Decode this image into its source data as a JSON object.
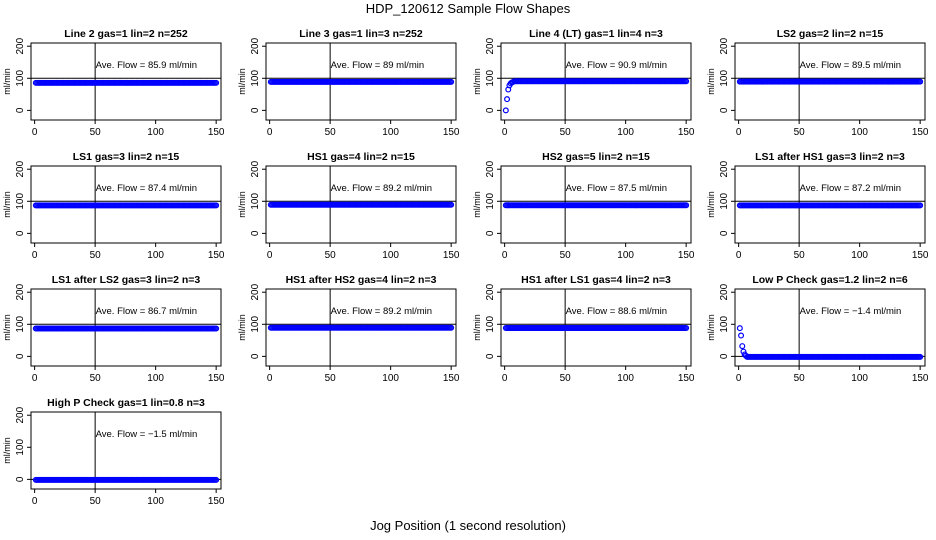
{
  "figure": {
    "title": "HDP_120612  Sample Flow Shapes",
    "xlabel": "Jog Position (1 second resolution)"
  },
  "style": {
    "point_color": "#0000ff",
    "box_color": "#000000"
  },
  "chart_data": [
    {
      "type": "scatter",
      "title": "Line 2 gas=1 lin=2 n=252",
      "ylabel": "ml/min",
      "annotation": "Ave. Flow = 85.9  ml/min",
      "xlim": [
        -3,
        154
      ],
      "ylim": [
        -30,
        210
      ],
      "xticks": [
        0,
        50,
        100,
        150
      ],
      "yticks": [
        0,
        100,
        200
      ],
      "vline": 50,
      "hline": 100,
      "x_start": 1,
      "x_end": 150,
      "early": [],
      "plateau": 85.9
    },
    {
      "type": "scatter",
      "title": "Line 3 gas=1 lin=3 n=252",
      "ylabel": "ml/min",
      "annotation": "Ave. Flow =  89  ml/min",
      "xlim": [
        -3,
        154
      ],
      "ylim": [
        -30,
        210
      ],
      "xticks": [
        0,
        50,
        100,
        150
      ],
      "yticks": [
        0,
        100,
        200
      ],
      "vline": 50,
      "hline": 100,
      "x_start": 1,
      "x_end": 150,
      "early": [],
      "plateau": 89
    },
    {
      "type": "scatter",
      "title": "Line 4 (LT) gas=1 lin=4 n=3",
      "ylabel": "ml/min",
      "annotation": "Ave. Flow = 90.9  ml/min",
      "xlim": [
        -3,
        154
      ],
      "ylim": [
        -30,
        210
      ],
      "xticks": [
        0,
        50,
        100,
        150
      ],
      "yticks": [
        0,
        100,
        200
      ],
      "vline": 50,
      "hline": 100,
      "x_start": 1,
      "x_end": 150,
      "early": [
        [
          1,
          0
        ],
        [
          2,
          35
        ],
        [
          3,
          65
        ],
        [
          4,
          78
        ],
        [
          5,
          84
        ],
        [
          6,
          87
        ],
        [
          7,
          89
        ]
      ],
      "plateau": 90.9
    },
    {
      "type": "scatter",
      "title": "LS2 gas=2 lin=2 n=15",
      "ylabel": "ml/min",
      "annotation": "Ave. Flow = 89.5  ml/min",
      "xlim": [
        -3,
        154
      ],
      "ylim": [
        -30,
        210
      ],
      "xticks": [
        0,
        50,
        100,
        150
      ],
      "yticks": [
        0,
        100,
        200
      ],
      "vline": 50,
      "hline": 100,
      "x_start": 1,
      "x_end": 150,
      "early": [],
      "plateau": 89.5
    },
    {
      "type": "scatter",
      "title": "LS1 gas=3 lin=2 n=15",
      "ylabel": "ml/min",
      "annotation": "Ave. Flow = 87.4  ml/min",
      "xlim": [
        -3,
        154
      ],
      "ylim": [
        -30,
        210
      ],
      "xticks": [
        0,
        50,
        100,
        150
      ],
      "yticks": [
        0,
        100,
        200
      ],
      "vline": 50,
      "hline": 100,
      "x_start": 1,
      "x_end": 150,
      "early": [],
      "plateau": 87.4
    },
    {
      "type": "scatter",
      "title": "HS1 gas=4 lin=2 n=15",
      "ylabel": "ml/min",
      "annotation": "Ave. Flow = 89.2  ml/min",
      "xlim": [
        -3,
        154
      ],
      "ylim": [
        -30,
        210
      ],
      "xticks": [
        0,
        50,
        100,
        150
      ],
      "yticks": [
        0,
        100,
        200
      ],
      "vline": 50,
      "hline": 100,
      "x_start": 1,
      "x_end": 150,
      "early": [],
      "plateau": 89.2
    },
    {
      "type": "scatter",
      "title": "HS2 gas=5 lin=2 n=15",
      "ylabel": "ml/min",
      "annotation": "Ave. Flow = 87.5  ml/min",
      "xlim": [
        -3,
        154
      ],
      "ylim": [
        -30,
        210
      ],
      "xticks": [
        0,
        50,
        100,
        150
      ],
      "yticks": [
        0,
        100,
        200
      ],
      "vline": 50,
      "hline": 100,
      "x_start": 1,
      "x_end": 150,
      "early": [],
      "plateau": 87.5
    },
    {
      "type": "scatter",
      "title": "LS1 after HS1 gas=3 lin=2 n=3",
      "ylabel": "ml/min",
      "annotation": "Ave. Flow = 87.2  ml/min",
      "xlim": [
        -3,
        154
      ],
      "ylim": [
        -30,
        210
      ],
      "xticks": [
        0,
        50,
        100,
        150
      ],
      "yticks": [
        0,
        100,
        200
      ],
      "vline": 50,
      "hline": 100,
      "x_start": 1,
      "x_end": 150,
      "early": [],
      "plateau": 87.2
    },
    {
      "type": "scatter",
      "title": "LS1 after LS2 gas=3 lin=2 n=3",
      "ylabel": "ml/min",
      "annotation": "Ave. Flow = 86.7  ml/min",
      "xlim": [
        -3,
        154
      ],
      "ylim": [
        -30,
        210
      ],
      "xticks": [
        0,
        50,
        100,
        150
      ],
      "yticks": [
        0,
        100,
        200
      ],
      "vline": 50,
      "hline": 100,
      "x_start": 1,
      "x_end": 150,
      "early": [],
      "plateau": 86.7
    },
    {
      "type": "scatter",
      "title": "HS1 after HS2 gas=4 lin=2 n=3",
      "ylabel": "ml/min",
      "annotation": "Ave. Flow = 89.2  ml/min",
      "xlim": [
        -3,
        154
      ],
      "ylim": [
        -30,
        210
      ],
      "xticks": [
        0,
        50,
        100,
        150
      ],
      "yticks": [
        0,
        100,
        200
      ],
      "vline": 50,
      "hline": 100,
      "x_start": 1,
      "x_end": 150,
      "early": [],
      "plateau": 89.2
    },
    {
      "type": "scatter",
      "title": "HS1 after LS1 gas=4 lin=2 n=3",
      "ylabel": "ml/min",
      "annotation": "Ave. Flow = 88.6  ml/min",
      "xlim": [
        -3,
        154
      ],
      "ylim": [
        -30,
        210
      ],
      "xticks": [
        0,
        50,
        100,
        150
      ],
      "yticks": [
        0,
        100,
        200
      ],
      "vline": 50,
      "hline": 100,
      "x_start": 1,
      "x_end": 150,
      "early": [],
      "plateau": 88.6
    },
    {
      "type": "scatter",
      "title": "Low P Check gas=1.2 lin=2 n=6",
      "ylabel": "ml/min",
      "annotation": "Ave. Flow = −1.4  ml/min",
      "xlim": [
        -3,
        154
      ],
      "ylim": [
        -30,
        210
      ],
      "xticks": [
        0,
        50,
        100,
        150
      ],
      "yticks": [
        0,
        100,
        200
      ],
      "vline": 50,
      "hline": 0,
      "x_start": 1,
      "x_end": 150,
      "early": [
        [
          1,
          88
        ],
        [
          2,
          65
        ],
        [
          3,
          32
        ],
        [
          4,
          15
        ],
        [
          5,
          6
        ],
        [
          6,
          2
        ]
      ],
      "plateau": -1.4
    },
    {
      "type": "scatter",
      "title": "High P Check gas=1 lin=0.8 n=3",
      "ylabel": "ml/min",
      "annotation": "Ave. Flow = −1.5  ml/min",
      "xlim": [
        -3,
        154
      ],
      "ylim": [
        -30,
        210
      ],
      "xticks": [
        0,
        50,
        100,
        150
      ],
      "yticks": [
        0,
        100,
        200
      ],
      "vline": 50,
      "hline": 0,
      "x_start": 1,
      "x_end": 150,
      "early": [],
      "plateau": -1.5
    }
  ]
}
